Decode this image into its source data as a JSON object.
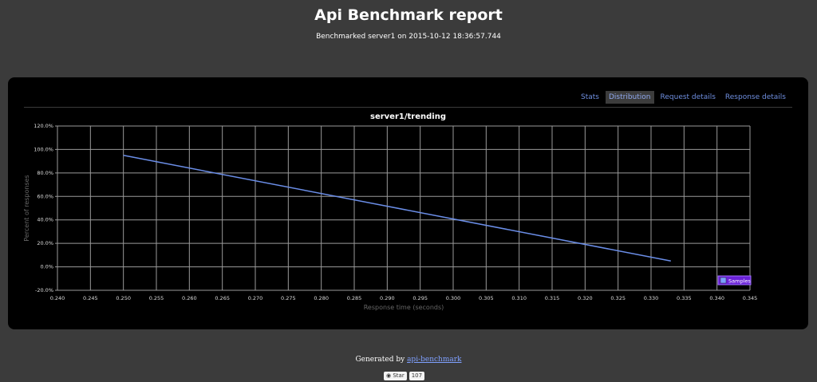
{
  "header": {
    "title": "Api Benchmark report",
    "subtitle": "Benchmarked server1 on 2015-10-12 18:36:57.744"
  },
  "tabs": [
    {
      "label": "Stats",
      "active": false
    },
    {
      "label": "Distribution",
      "active": true
    },
    {
      "label": "Request details",
      "active": false
    },
    {
      "label": "Response details",
      "active": false
    }
  ],
  "chart_data": {
    "type": "line",
    "title": "server1/trending",
    "xlabel": "Response time (seconds)",
    "ylabel": "Percent of responses",
    "x_ticks": [
      "0.240",
      "0.245",
      "0.250",
      "0.255",
      "0.260",
      "0.265",
      "0.270",
      "0.275",
      "0.280",
      "0.285",
      "0.290",
      "0.295",
      "0.300",
      "0.305",
      "0.310",
      "0.315",
      "0.320",
      "0.325",
      "0.330",
      "0.335",
      "0.340",
      "0.345"
    ],
    "y_ticks": [
      "120.0%",
      "100.0%",
      "80.0%",
      "60.0%",
      "40.0%",
      "20.0%",
      "0.0%",
      "-20.0%"
    ],
    "xlim": [
      0.24,
      0.345
    ],
    "ylim": [
      -20,
      120
    ],
    "grid": true,
    "legend_position": "bottom-right",
    "series": [
      {
        "name": "Samples",
        "color": "#6b8ee8",
        "x": [
          0.25,
          0.333
        ],
        "y": [
          95,
          5
        ]
      }
    ]
  },
  "footer": {
    "generated_by": "Generated by ",
    "link": "api-benchmark",
    "star_label": "Star",
    "star_count": "107"
  }
}
